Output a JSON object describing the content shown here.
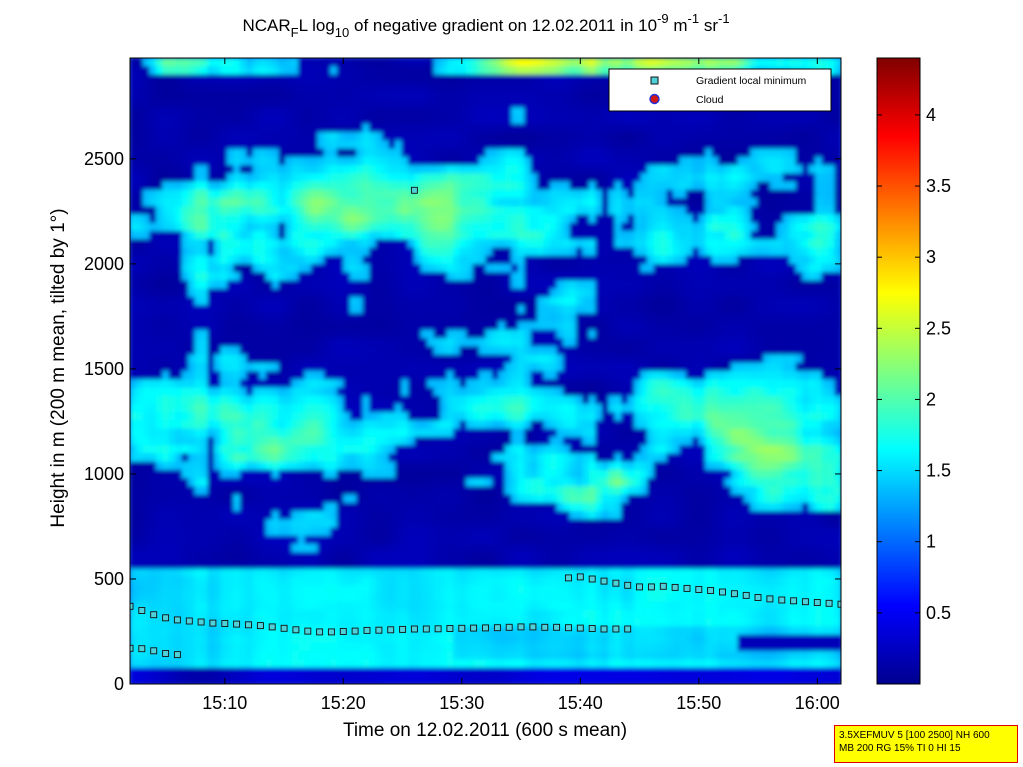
{
  "chart_data": {
    "type": "heatmap",
    "title": {
      "prefix": "NCAR",
      "sub1": "F",
      "mid": "L log",
      "sub2": "10",
      "rest": " of negative gradient on 12.02.2011 in 10",
      "sup1": "-9",
      "unit1": " m",
      "sup2": "-1",
      "unit2": " sr",
      "sup3": "-1"
    },
    "xlabel": "Time on 12.02.2011 (600 s mean)",
    "ylabel": "Height in m (200 m mean, tilted by 1°)",
    "xlim": [
      "15:02",
      "16:02"
    ],
    "ylim": [
      0,
      2980
    ],
    "x_ticks": [
      "15:10",
      "15:20",
      "15:30",
      "15:40",
      "15:50",
      "16:00"
    ],
    "y_ticks": [
      0,
      500,
      1000,
      1500,
      2000,
      2500
    ],
    "colorbar": {
      "colormap": "jet",
      "range": [
        0,
        4.4
      ],
      "ticks": [
        0.5,
        1,
        1.5,
        2,
        2.5,
        3,
        3.5,
        4
      ]
    },
    "legend": {
      "position": "top-right",
      "entries": [
        {
          "label": "Gradient local minimum",
          "marker": "square",
          "color": "#4fd1d9"
        },
        {
          "label": "Cloud",
          "marker": "circle",
          "color": "#d01818"
        }
      ]
    },
    "series": [
      {
        "name": "Gradient local minimum",
        "x": [
          "15:02",
          "15:03",
          "15:04",
          "15:05",
          "15:06",
          "15:07",
          "15:08",
          "15:09",
          "15:10",
          "15:11",
          "15:12",
          "15:13",
          "15:14",
          "15:15",
          "15:16",
          "15:17",
          "15:18",
          "15:19",
          "15:20",
          "15:21",
          "15:22",
          "15:23",
          "15:24",
          "15:25",
          "15:26",
          "15:27",
          "15:28",
          "15:29",
          "15:30",
          "15:31",
          "15:32",
          "15:33",
          "15:34",
          "15:35",
          "15:36",
          "15:37",
          "15:38",
          "15:39",
          "15:40",
          "15:41",
          "15:42",
          "15:43",
          "15:44"
        ],
        "y": [
          370,
          350,
          330,
          315,
          305,
          300,
          295,
          290,
          288,
          285,
          282,
          278,
          272,
          265,
          258,
          252,
          248,
          248,
          250,
          252,
          255,
          256,
          258,
          260,
          262,
          262,
          263,
          264,
          265,
          266,
          267,
          268,
          270,
          272,
          272,
          270,
          270,
          268,
          266,
          264,
          262,
          262,
          262
        ]
      },
      {
        "name": "Gradient local minimum",
        "x": [
          "15:02",
          "15:03",
          "15:04",
          "15:05",
          "15:06"
        ],
        "y": [
          170,
          168,
          158,
          145,
          140
        ]
      },
      {
        "name": "Gradient local minimum",
        "x": [
          "15:26"
        ],
        "y": [
          2350
        ]
      },
      {
        "name": "Gradient local minimum",
        "x": [
          "15:39",
          "15:40",
          "15:41",
          "15:42",
          "15:43",
          "15:44",
          "15:45",
          "15:46",
          "15:47",
          "15:48",
          "15:49",
          "15:50",
          "15:51",
          "15:52",
          "15:53",
          "15:54",
          "15:55",
          "15:56",
          "15:57",
          "15:58",
          "15:59",
          "16:00",
          "16:01",
          "16:02"
        ],
        "y": [
          505,
          510,
          500,
          490,
          480,
          470,
          462,
          462,
          465,
          460,
          455,
          450,
          445,
          438,
          430,
          422,
          412,
          405,
          400,
          396,
          392,
          388,
          384,
          380
        ]
      }
    ]
  },
  "info_box": {
    "line1": "3.5XEFMUV 5 [100 2500] NH 600",
    "line2": "MB 200 RG 15% TI 0 HI 15"
  }
}
